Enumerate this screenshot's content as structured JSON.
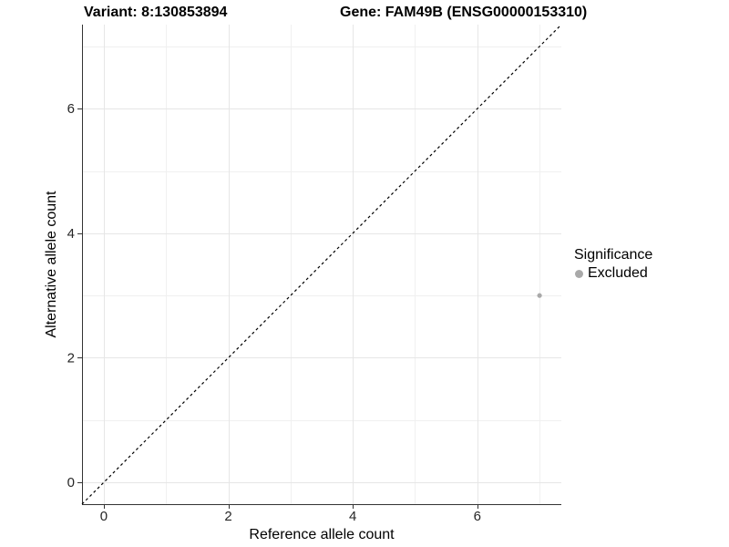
{
  "chart_data": {
    "type": "scatter",
    "title_variant": "Variant: 8:130853894",
    "title_gene": "Gene: FAM49B (ENSG00000153310)",
    "xlabel": "Reference allele count",
    "ylabel": "Alternative allele count",
    "xlim": [
      -0.35,
      7.35
    ],
    "ylim": [
      -0.35,
      7.35
    ],
    "xticks": [
      0,
      2,
      4,
      6
    ],
    "yticks": [
      0,
      2,
      4,
      6
    ],
    "xminor": [
      1,
      3,
      5,
      7
    ],
    "yminor": [
      1,
      3,
      5,
      7
    ],
    "grid": "major+minor",
    "series": [
      {
        "name": "Excluded",
        "color": "#A9A9A9",
        "points": [
          {
            "x": 7,
            "y": 3
          }
        ]
      }
    ],
    "reference_line": {
      "kind": "identity",
      "slope": 1,
      "intercept": 0,
      "style": "dashed",
      "color": "#000000"
    },
    "legend": {
      "title": "Significance",
      "position": "right",
      "entries": [
        {
          "label": "Excluded",
          "color": "#A9A9A9",
          "marker": "circle"
        }
      ]
    },
    "colors": {
      "grid_major": "#E6E6E6",
      "grid_minor": "#F0F0F0",
      "axis_line": "#333333",
      "tick_label": "#262626",
      "point": "#A9A9A9"
    }
  }
}
